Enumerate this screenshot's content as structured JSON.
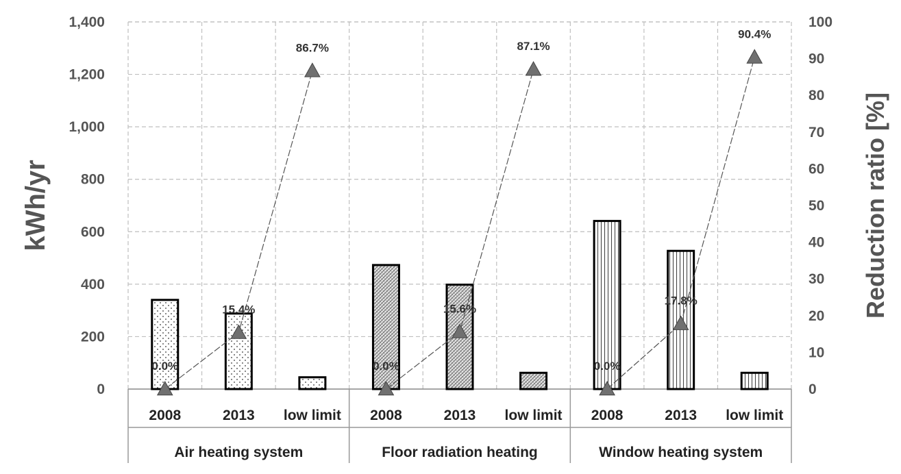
{
  "chart_data": {
    "type": "bar",
    "groups": [
      "Air heating system",
      "Floor radiation heating",
      "Window heating system"
    ],
    "categories": [
      "2008",
      "2013",
      "low limit"
    ],
    "series": [
      {
        "axis": "left",
        "type": "bar",
        "values": [
          [
            340,
            288,
            45
          ],
          [
            473,
            398,
            62
          ],
          [
            641,
            527,
            62
          ]
        ]
      },
      {
        "axis": "right",
        "type": "line",
        "marker": "triangle",
        "values": [
          [
            0.0,
            15.4,
            86.7
          ],
          [
            0.0,
            15.6,
            87.1
          ],
          [
            0.0,
            17.8,
            90.4
          ]
        ],
        "labels": [
          [
            "0.0%",
            "15.4%",
            "86.7%"
          ],
          [
            "0.0%",
            "15.6%",
            "87.1%"
          ],
          [
            "0.0%",
            "17.8%",
            "90.4%"
          ]
        ]
      }
    ],
    "ylabel": "kWh/yr",
    "ylim": [
      0,
      1400
    ],
    "yticks": [
      "0",
      "200",
      "400",
      "600",
      "800",
      "1,000",
      "1,200",
      "1,400"
    ],
    "y2label": "Reduction ratio [%]",
    "y2lim": [
      0,
      100
    ],
    "y2ticks": [
      "0",
      "10",
      "20",
      "30",
      "40",
      "50",
      "60",
      "70",
      "80",
      "90",
      "100"
    ],
    "bar_patterns": [
      "dots",
      "crosshatch",
      "vertical-lines"
    ],
    "grid": "dashed",
    "colors": {
      "bar_edge": "#000000",
      "marker": "#707070",
      "line": "#555555",
      "grid": "#bfbfbf"
    }
  }
}
